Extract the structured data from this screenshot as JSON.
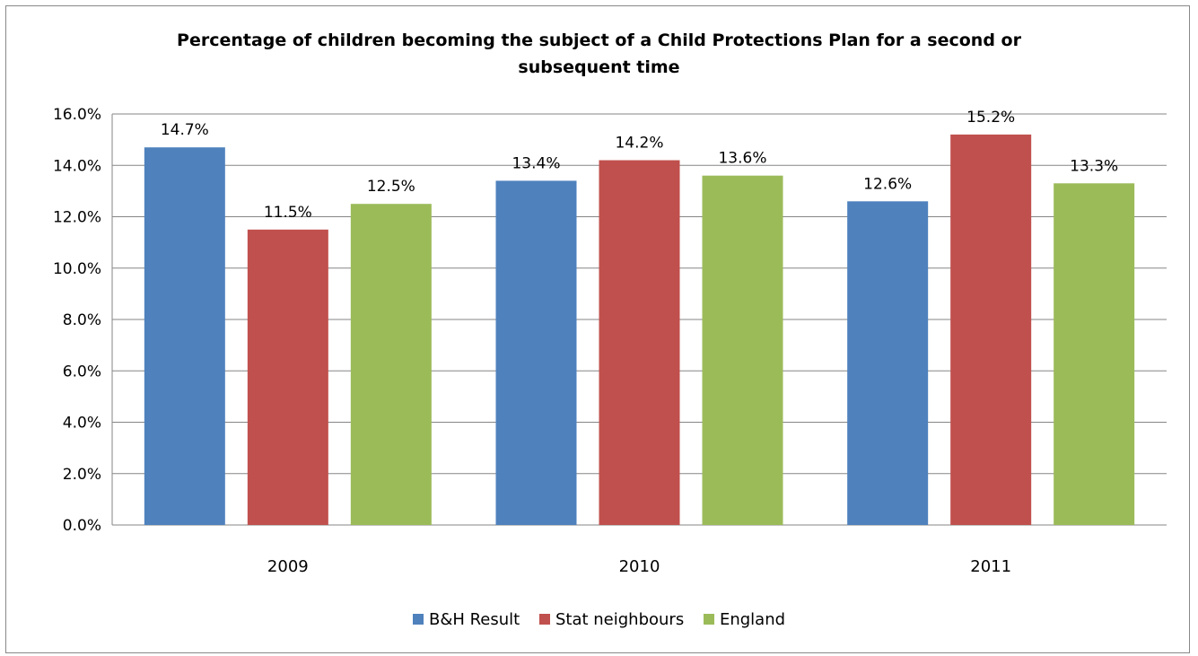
{
  "chart_data": {
    "type": "bar",
    "title": "Percentage of children becoming the subject of a Child  Protections Plan for a second or subsequent time",
    "title_lines": [
      "Percentage of children becoming the subject of a Child  Protections Plan for a second or",
      "subsequent time"
    ],
    "categories": [
      "2009",
      "2010",
      "2011"
    ],
    "series": [
      {
        "name": "B&H Result",
        "values": [
          14.7,
          13.4,
          12.6
        ],
        "labels": [
          "14.7%",
          "13.4%",
          "12.6%"
        ],
        "color": "#4F81BD"
      },
      {
        "name": "Stat neighbours",
        "values": [
          11.5,
          14.2,
          15.2
        ],
        "labels": [
          "11.5%",
          "14.2%",
          "15.2%"
        ],
        "color": "#C0504D"
      },
      {
        "name": "England",
        "values": [
          12.5,
          13.6,
          13.3
        ],
        "labels": [
          "12.5%",
          "13.6%",
          "13.3%"
        ],
        "color": "#9BBB59"
      }
    ],
    "ylim": [
      0,
      16
    ],
    "yticks": [
      "0.0%",
      "2.0%",
      "4.0%",
      "6.0%",
      "8.0%",
      "10.0%",
      "12.0%",
      "14.0%",
      "16.0%"
    ],
    "grid": true,
    "legend_position": "bottom"
  }
}
